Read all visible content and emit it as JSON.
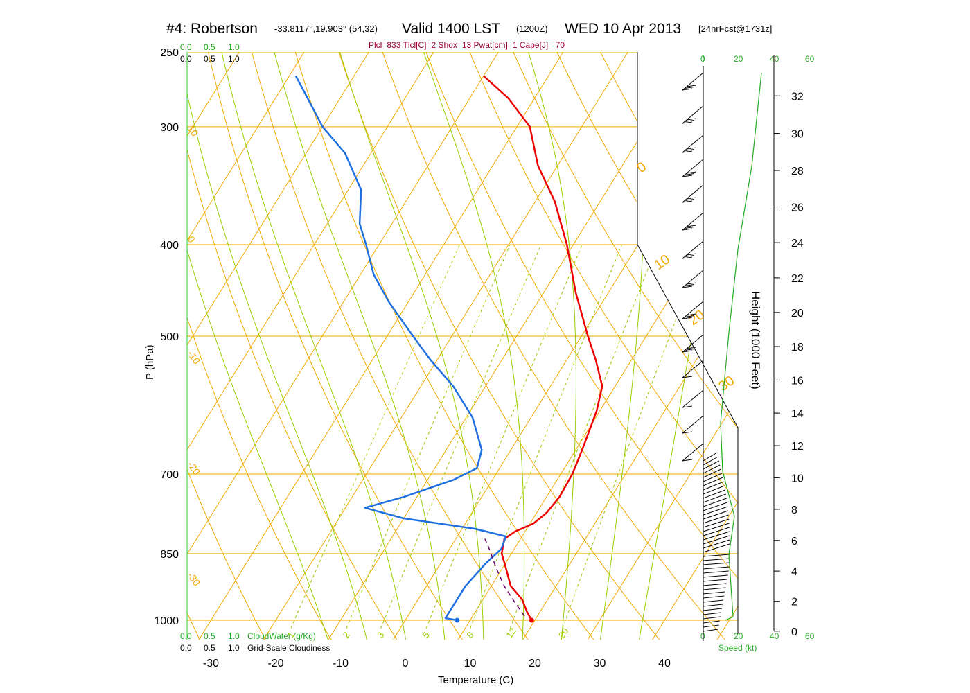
{
  "title": {
    "station": "#4: Robertson",
    "coords": "-33.8117°,19.903° (54,32)",
    "valid": "Valid 1400 LST",
    "utc": "(1200Z)",
    "date": "WED 10 Apr 2013",
    "forecast": "[24hrFcst@1731z]"
  },
  "indices": "Plcl=833 Tlcl[C]=2 Shox=13 Pwat[cm]=1 Cape[J]= 70",
  "colors": {
    "isotherm": "#f2a900",
    "dry_adiabat": "#f2a900",
    "moist_adiabat": "#99cc00",
    "mixing_ratio": "#99cc00",
    "temperature": "#ee0000",
    "dewpoint": "#1e6fe0",
    "parcel": "#660066",
    "wind_speed": "#22aa22",
    "cloud_scale": "#22aa22"
  },
  "chart_data": {
    "type": "line",
    "title": "Skew-T log-P sounding",
    "xlabel": "Temperature (C)",
    "ylabel": "P (hPa)",
    "y2label": "Height (1000 Feet)",
    "p_ticks": [
      "250",
      "300",
      "400",
      "500",
      "700",
      "850",
      "1000"
    ],
    "p_values": [
      250,
      300,
      400,
      500,
      700,
      850,
      1000
    ],
    "t_ticks": [
      "-30",
      "-20",
      "-10",
      "0",
      "10",
      "20",
      "30",
      "40"
    ],
    "t_values": [
      -30,
      -20,
      -10,
      0,
      10,
      20,
      30,
      40
    ],
    "height_ticks": [
      "0",
      "2",
      "4",
      "6",
      "8",
      "10",
      "12",
      "14",
      "16",
      "18",
      "20",
      "22",
      "24",
      "26",
      "28",
      "30",
      "32"
    ],
    "isotherm_labels": [
      "10",
      "0",
      "-10",
      "-20",
      "-30",
      "0",
      "10",
      "20",
      "30"
    ],
    "mixing_ratio_labels": [
      "1",
      "2",
      "3",
      "5",
      "8",
      "12",
      "20"
    ],
    "mixing_ratio_values": [
      1,
      2,
      3,
      5,
      8,
      12,
      20
    ],
    "series": [
      {
        "name": "Temperature",
        "points": [
          [
            19.5,
            1000
          ],
          [
            18,
            980
          ],
          [
            16,
            950
          ],
          [
            13,
            920
          ],
          [
            10.5,
            880
          ],
          [
            8.5,
            850
          ],
          [
            7.5,
            820
          ],
          [
            8.5,
            805
          ],
          [
            10.5,
            790
          ],
          [
            11.5,
            770
          ],
          [
            12,
            740
          ],
          [
            11.8,
            700
          ],
          [
            11,
            660
          ],
          [
            9.5,
            600
          ],
          [
            8,
            565
          ],
          [
            4.5,
            530
          ],
          [
            1,
            500
          ],
          [
            -5,
            450
          ],
          [
            -11,
            400
          ],
          [
            -17,
            360
          ],
          [
            -23,
            330
          ],
          [
            -28,
            300
          ],
          [
            -34,
            280
          ],
          [
            -40,
            265
          ]
        ]
      },
      {
        "name": "Dewpoint",
        "points": [
          [
            8,
            1000
          ],
          [
            6,
            995
          ],
          [
            6,
            970
          ],
          [
            6,
            920
          ],
          [
            7,
            870
          ],
          [
            8,
            840
          ],
          [
            7.5,
            815
          ],
          [
            2,
            800
          ],
          [
            -10,
            780
          ],
          [
            -17,
            760
          ],
          [
            -12,
            740
          ],
          [
            -6,
            710
          ],
          [
            -3.5,
            690
          ],
          [
            -4.5,
            660
          ],
          [
            -9,
            610
          ],
          [
            -15,
            565
          ],
          [
            -21,
            530
          ],
          [
            -26,
            500
          ],
          [
            -33,
            460
          ],
          [
            -38,
            430
          ],
          [
            -42,
            400
          ],
          [
            -45,
            380
          ],
          [
            -48,
            350
          ],
          [
            -54,
            320
          ],
          [
            -60,
            300
          ],
          [
            -65,
            280
          ],
          [
            -69,
            265
          ]
        ]
      },
      {
        "name": "Parcel",
        "points": [
          [
            18,
            990
          ],
          [
            15,
            955
          ],
          [
            12,
            920
          ],
          [
            9,
            880
          ],
          [
            6.5,
            845
          ],
          [
            4.5,
            820
          ]
        ]
      }
    ],
    "surface_points": {
      "temperature": 19.5,
      "dewpoint": 8
    },
    "winds": {
      "units": "kt",
      "levels_kft": [
        32,
        30,
        28,
        26,
        24,
        22,
        20,
        18,
        16,
        14,
        12,
        10,
        9,
        8,
        7,
        6,
        5,
        4,
        3,
        2,
        1
      ],
      "barbs": 10
    },
    "wind_speed_axis": [
      "0",
      "20",
      "40",
      "60"
    ],
    "wind_speed_label": "Speed (kt)",
    "cloud_scale_top": [
      "0.0",
      "0.5",
      "1.0"
    ],
    "cloud_scale_bottom": [
      "0.0",
      "0.5",
      "1.0"
    ],
    "cloud_water_label": "CloudWater (g/Kg)",
    "cloudiness_label": "Grid-Scale Cloudiness"
  }
}
